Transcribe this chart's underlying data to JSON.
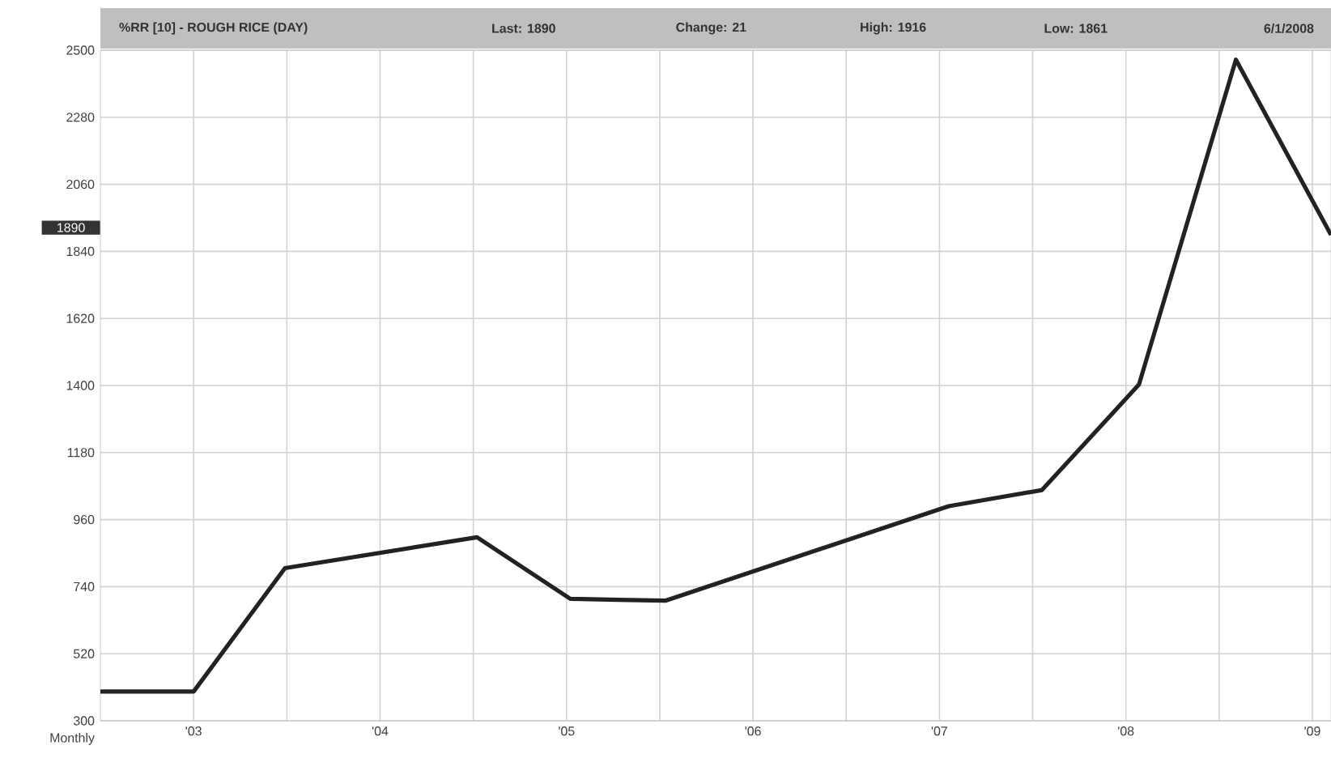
{
  "chart_data": {
    "type": "line",
    "title": "%RR [10] - ROUGH RICE (DAY)",
    "xlabel": "Monthly",
    "annotations": [
      "Last: 1890",
      "Change:  21",
      "High: 1916",
      "Low: 1861",
      "6/1/2008",
      "1890"
    ],
    "x": [
      2002.5,
      2003.0,
      2003.49,
      2004.52,
      2005.02,
      2005.53,
      2007.05,
      2007.55,
      2008.07,
      2008.59,
      2009.1
    ],
    "series": [
      {
        "color": "#222222",
        "values": [
          396,
          396,
          801,
          902,
          700,
          694,
          1004,
          1057,
          1403,
          2469,
          1894
        ]
      }
    ],
    "xlim": [
      2002.5,
      2009.1
    ],
    "xticks": [
      {
        "value": 2003,
        "label": "'03"
      },
      {
        "value": 2003.5,
        "label": null
      },
      {
        "value": 2004,
        "label": "'04"
      },
      {
        "value": 2004.5,
        "label": null
      },
      {
        "value": 2005,
        "label": "'05"
      },
      {
        "value": 2005.5,
        "label": null
      },
      {
        "value": 2006,
        "label": "'06"
      },
      {
        "value": 2006.5,
        "label": null
      },
      {
        "value": 2007,
        "label": "'07"
      },
      {
        "value": 2007.5,
        "label": null
      },
      {
        "value": 2008,
        "label": "'08"
      },
      {
        "value": 2008.5,
        "label": null
      },
      {
        "value": 2009,
        "label": "'09"
      }
    ],
    "ylim": [
      300,
      2500
    ],
    "yticks": [
      300,
      520,
      740,
      960,
      1180,
      1400,
      1620,
      1840,
      2060,
      2280,
      2500
    ],
    "grid": true,
    "marker": "none",
    "line_style": "solid"
  }
}
